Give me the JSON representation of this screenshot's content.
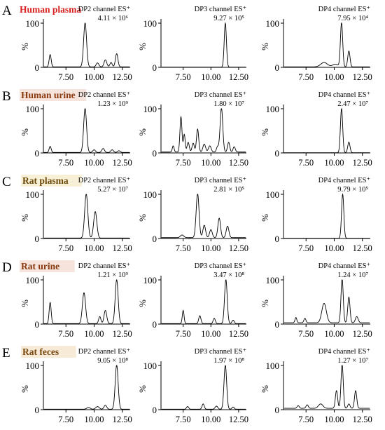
{
  "figure": {
    "rows": [
      {
        "letter": "A",
        "title": "Human plasma",
        "title_color": "#d81f1f",
        "title_bg": "#ffffff",
        "panels": [
          {
            "channel": "DP2 channel ES⁺",
            "intensity": "4.11 × 10⁶"
          },
          {
            "channel": "DP3 channel ES⁺",
            "intensity": "9.27 × 10⁵"
          },
          {
            "channel": "DP4 channel ES⁺",
            "intensity": "7.95 × 10⁴"
          }
        ]
      },
      {
        "letter": "B",
        "title": "Human urine",
        "title_color": "#8b3a10",
        "title_bg": "#f6e4dc",
        "panels": [
          {
            "channel": "DP2 channel ES⁺",
            "intensity": "1.23 × 10⁹"
          },
          {
            "channel": "DP3 channel ES⁺",
            "intensity": "1.80 × 10⁷"
          },
          {
            "channel": "DP4 channel ES⁺",
            "intensity": "2.47 × 10⁷"
          }
        ]
      },
      {
        "letter": "C",
        "title": "Rat plasma",
        "title_color": "#6b4a0a",
        "title_bg": "#f7efd6",
        "panels": [
          {
            "channel": "DP2 channel ES⁺",
            "intensity": "5.27 × 10⁷"
          },
          {
            "channel": "DP3 channel ES⁺",
            "intensity": "2.81 × 10⁵"
          },
          {
            "channel": "DP4 channel ES⁺",
            "intensity": "9.79 × 10⁵"
          }
        ]
      },
      {
        "letter": "D",
        "title": "Rat urine",
        "title_color": "#8b3a10",
        "title_bg": "#f6e4dc",
        "panels": [
          {
            "channel": "DP2 channel ES⁺",
            "intensity": "1.21 × 10⁹"
          },
          {
            "channel": "DP3 channel ES⁺",
            "intensity": "3.47 × 10⁸"
          },
          {
            "channel": "DP4 channel ES⁺",
            "intensity": "1.24 × 10⁷"
          }
        ]
      },
      {
        "letter": "E",
        "title": "Rat feces",
        "title_color": "#7a4a10",
        "title_bg": "#f7ead6",
        "panels": [
          {
            "channel": "DP2 channel ES⁺",
            "intensity": "9.05 × 10⁸"
          },
          {
            "channel": "DP3 channel ES⁺",
            "intensity": "1.97 × 10⁸"
          },
          {
            "channel": "DP4 channel ES⁺",
            "intensity": "1.27 × 10⁷"
          }
        ]
      }
    ],
    "ylabel": "%",
    "y_ticks": [
      "0",
      "100"
    ],
    "x_ticks": [
      "7.50",
      "10.00",
      "12.50"
    ]
  },
  "chart_data": {
    "type": "line",
    "xlim": [
      5.5,
      13.2
    ],
    "ylim": [
      0,
      100
    ],
    "x_ticks": [
      7.5,
      10.0,
      12.5
    ],
    "y_ticks": [
      0,
      100
    ],
    "ylabel": "%",
    "panels": [
      {
        "row": "A",
        "column": 1,
        "peaks": [
          {
            "rt": 6.1,
            "height": 28,
            "w": 0.09
          },
          {
            "rt": 9.2,
            "height": 100,
            "w": 0.13
          },
          {
            "rt": 10.3,
            "height": 9,
            "w": 0.12
          },
          {
            "rt": 11.0,
            "height": 16,
            "w": 0.12
          },
          {
            "rt": 11.5,
            "height": 10,
            "w": 0.1
          },
          {
            "rt": 12.0,
            "height": 30,
            "w": 0.11
          }
        ],
        "baseline": 1
      },
      {
        "row": "A",
        "column": 2,
        "peaks": [
          {
            "rt": 11.3,
            "height": 100,
            "w": 0.1
          }
        ],
        "baseline": 0.5
      },
      {
        "row": "A",
        "column": 3,
        "peaks": [
          {
            "rt": 9.1,
            "height": 10,
            "w": 0.3
          },
          {
            "rt": 10.1,
            "height": 6,
            "w": 0.25
          },
          {
            "rt": 10.65,
            "height": 100,
            "w": 0.1
          },
          {
            "rt": 11.3,
            "height": 36,
            "w": 0.1
          }
        ],
        "baseline": 1
      },
      {
        "row": "B",
        "column": 1,
        "peaks": [
          {
            "rt": 6.1,
            "height": 14,
            "w": 0.09
          },
          {
            "rt": 9.2,
            "height": 100,
            "w": 0.13
          },
          {
            "rt": 10.0,
            "height": 6,
            "w": 0.12
          },
          {
            "rt": 10.8,
            "height": 9,
            "w": 0.12
          },
          {
            "rt": 11.6,
            "height": 6,
            "w": 0.12
          },
          {
            "rt": 12.2,
            "height": 4,
            "w": 0.12
          }
        ],
        "baseline": 1
      },
      {
        "row": "B",
        "column": 2,
        "peaks": [
          {
            "rt": 6.6,
            "height": 14,
            "w": 0.08
          },
          {
            "rt": 7.3,
            "height": 80,
            "w": 0.09
          },
          {
            "rt": 7.6,
            "height": 40,
            "w": 0.08
          },
          {
            "rt": 7.95,
            "height": 22,
            "w": 0.1
          },
          {
            "rt": 8.4,
            "height": 20,
            "w": 0.1
          },
          {
            "rt": 8.8,
            "height": 52,
            "w": 0.1
          },
          {
            "rt": 9.4,
            "height": 18,
            "w": 0.12
          },
          {
            "rt": 9.9,
            "height": 14,
            "w": 0.12
          },
          {
            "rt": 10.6,
            "height": 12,
            "w": 0.1
          },
          {
            "rt": 10.95,
            "height": 100,
            "w": 0.12
          },
          {
            "rt": 11.6,
            "height": 22,
            "w": 0.1
          },
          {
            "rt": 12.1,
            "height": 12,
            "w": 0.1
          }
        ],
        "baseline": 2
      },
      {
        "row": "B",
        "column": 3,
        "peaks": [
          {
            "rt": 10.65,
            "height": 100,
            "w": 0.1
          },
          {
            "rt": 11.3,
            "height": 24,
            "w": 0.1
          }
        ],
        "baseline": 0.5
      },
      {
        "row": "C",
        "column": 1,
        "peaks": [
          {
            "rt": 9.3,
            "height": 100,
            "w": 0.14
          },
          {
            "rt": 10.1,
            "height": 60,
            "w": 0.14
          }
        ],
        "baseline": 1
      },
      {
        "row": "C",
        "column": 2,
        "peaks": [
          {
            "rt": 7.4,
            "height": 6,
            "w": 0.15
          },
          {
            "rt": 8.8,
            "height": 100,
            "w": 0.13
          },
          {
            "rt": 9.4,
            "height": 28,
            "w": 0.12
          },
          {
            "rt": 10.0,
            "height": 18,
            "w": 0.12
          },
          {
            "rt": 10.75,
            "height": 44,
            "w": 0.12
          },
          {
            "rt": 11.5,
            "height": 26,
            "w": 0.12
          }
        ],
        "baseline": 2
      },
      {
        "row": "C",
        "column": 3,
        "peaks": [
          {
            "rt": 10.75,
            "height": 100,
            "w": 0.1
          }
        ],
        "baseline": 0.5
      },
      {
        "row": "D",
        "column": 1,
        "peaks": [
          {
            "rt": 6.1,
            "height": 48,
            "w": 0.09
          },
          {
            "rt": 9.1,
            "height": 70,
            "w": 0.14
          },
          {
            "rt": 10.5,
            "height": 16,
            "w": 0.1
          },
          {
            "rt": 11.0,
            "height": 30,
            "w": 0.12
          },
          {
            "rt": 12.0,
            "height": 100,
            "w": 0.13
          }
        ],
        "baseline": 1
      },
      {
        "row": "D",
        "column": 2,
        "peaks": [
          {
            "rt": 7.5,
            "height": 30,
            "w": 0.08
          },
          {
            "rt": 9.0,
            "height": 18,
            "w": 0.1
          },
          {
            "rt": 10.3,
            "height": 12,
            "w": 0.1
          },
          {
            "rt": 11.35,
            "height": 100,
            "w": 0.12
          },
          {
            "rt": 12.0,
            "height": 8,
            "w": 0.1
          }
        ],
        "baseline": 1
      },
      {
        "row": "D",
        "column": 3,
        "peaks": [
          {
            "rt": 6.6,
            "height": 12,
            "w": 0.08
          },
          {
            "rt": 7.4,
            "height": 10,
            "w": 0.09
          },
          {
            "rt": 9.1,
            "height": 44,
            "w": 0.2
          },
          {
            "rt": 10.7,
            "height": 100,
            "w": 0.1
          },
          {
            "rt": 11.3,
            "height": 58,
            "w": 0.1
          },
          {
            "rt": 12.0,
            "height": 14,
            "w": 0.12
          }
        ],
        "baseline": 3
      },
      {
        "row": "E",
        "column": 1,
        "peaks": [
          {
            "rt": 9.5,
            "height": 4,
            "w": 0.15
          },
          {
            "rt": 10.3,
            "height": 6,
            "w": 0.15
          },
          {
            "rt": 11.0,
            "height": 9,
            "w": 0.12
          },
          {
            "rt": 12.0,
            "height": 100,
            "w": 0.13
          }
        ],
        "baseline": 1
      },
      {
        "row": "E",
        "column": 2,
        "peaks": [
          {
            "rt": 7.9,
            "height": 6,
            "w": 0.1
          },
          {
            "rt": 9.3,
            "height": 12,
            "w": 0.1
          },
          {
            "rt": 10.5,
            "height": 7,
            "w": 0.12
          },
          {
            "rt": 11.3,
            "height": 100,
            "w": 0.12
          },
          {
            "rt": 12.0,
            "height": 5,
            "w": 0.1
          }
        ],
        "baseline": 1
      },
      {
        "row": "E",
        "column": 3,
        "peaks": [
          {
            "rt": 6.8,
            "height": 6,
            "w": 0.1
          },
          {
            "rt": 7.6,
            "height": 8,
            "w": 0.1
          },
          {
            "rt": 8.8,
            "height": 10,
            "w": 0.2
          },
          {
            "rt": 10.2,
            "height": 40,
            "w": 0.1
          },
          {
            "rt": 10.7,
            "height": 100,
            "w": 0.1
          },
          {
            "rt": 11.3,
            "height": 10,
            "w": 0.1
          },
          {
            "rt": 11.9,
            "height": 40,
            "w": 0.1
          }
        ],
        "baseline": 3
      }
    ]
  }
}
